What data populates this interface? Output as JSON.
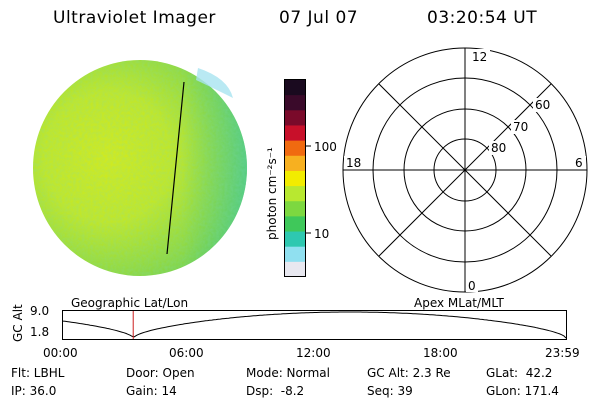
{
  "header": {
    "instrument": "Ultraviolet Imager",
    "date": "07 Jul 07",
    "time": "03:20:54 UT"
  },
  "colorbar": {
    "unit_label": "photon cm⁻²s⁻¹",
    "ticks": [
      "100",
      "10"
    ],
    "colors_top_to_bottom": [
      "#1a0a1f",
      "#3a0a2a",
      "#7a0a2a",
      "#c8102a",
      "#f06a10",
      "#f7b020",
      "#f2ec00",
      "#b8e830",
      "#7dd840",
      "#3fc85a",
      "#2ec8b0",
      "#90e0f0",
      "#e8e8f0"
    ]
  },
  "polar_plot": {
    "labels": {
      "top": "12",
      "bottom": "0",
      "left": "18",
      "right": "6",
      "lat_60": "60",
      "lat_70": "70",
      "lat_80": "80"
    }
  },
  "timeline": {
    "y_label": "GC Alt",
    "y_max": "9.0",
    "y_min": "1.8",
    "left_caption": "Geographic Lat/Lon",
    "right_caption": "Apex MLat/MLT",
    "x_ticks": [
      "00:00",
      "06:00",
      "12:00",
      "18:00",
      "23:59"
    ],
    "current_marker_hours": 3.35,
    "marker_color": "#cc2020"
  },
  "status": {
    "flt": "Flt: LBHL",
    "ip": "IP: 36.0",
    "door": "Door: Open",
    "gain": "Gain: 14",
    "mode": "Mode: Normal",
    "dsp": "Dsp:  -8.2",
    "gc_alt": "GC Alt: 2.3 Re",
    "seq": "Seq: 39",
    "glat": "GLat:  42.2",
    "glon": "GLon: 171.4"
  }
}
